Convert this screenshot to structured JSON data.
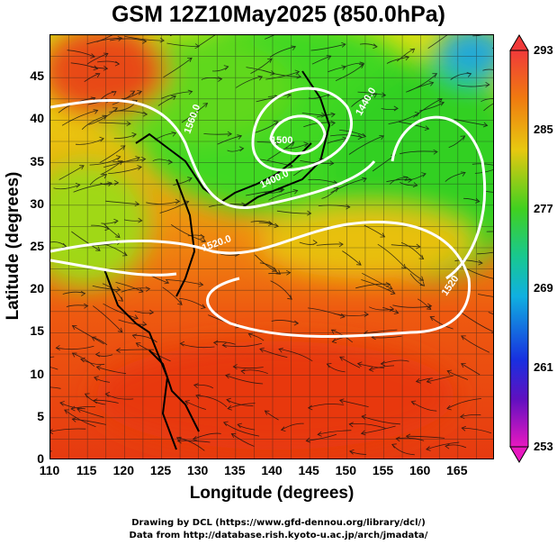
{
  "title": "GSM 12Z10May2025 (850.0hPa)",
  "xlabel": "Longitude (degrees)",
  "ylabel": "Latitude  (degrees)",
  "x_ticks": [
    "110",
    "115",
    "120",
    "125",
    "130",
    "135",
    "140",
    "145",
    "150",
    "155",
    "160",
    "165"
  ],
  "y_ticks": [
    "45",
    "40",
    "35",
    "30",
    "25",
    "20",
    "15",
    "10",
    "5",
    "0"
  ],
  "colorbar_ticks": [
    "293",
    "285",
    "277",
    "269",
    "261",
    "253"
  ],
  "contour_labels": [
    "1560.0",
    "1440.0",
    "1500",
    "1400.0",
    "1520.0",
    "1520"
  ],
  "credits": {
    "line1": "Drawing by DCL (https://www.gfd-dennou.org/library/dcl/)",
    "line2": "Data from http://database.rish.kyoto-u.ac.jp/arch/jmadata/"
  },
  "colors": {
    "warm": "#e8300e",
    "orange": "#f07a0a",
    "yellow": "#e8d80e",
    "green": "#3ad81a",
    "cyan": "#10c8c8",
    "blue": "#1848f0",
    "magenta": "#e020c8"
  },
  "chart_data": {
    "type": "heatmap",
    "title": "GSM 12Z10May2025 (850.0hPa)",
    "xlabel": "Longitude (degrees)",
    "ylabel": "Latitude  (degrees)",
    "xlim": [
      110,
      170
    ],
    "ylim": [
      0,
      50
    ],
    "x_ticks": [
      110,
      115,
      120,
      125,
      130,
      135,
      140,
      145,
      150,
      155,
      160,
      165
    ],
    "y_ticks": [
      0,
      5,
      10,
      15,
      20,
      25,
      30,
      35,
      40,
      45
    ],
    "colorbar": {
      "min": 253,
      "max": 293,
      "ticks": [
        293,
        285,
        277,
        269,
        261,
        253
      ]
    },
    "grid": true,
    "overlays": [
      "temperature shading",
      "geopotential height contours (white)",
      "streamlines",
      "coastlines"
    ]
  }
}
